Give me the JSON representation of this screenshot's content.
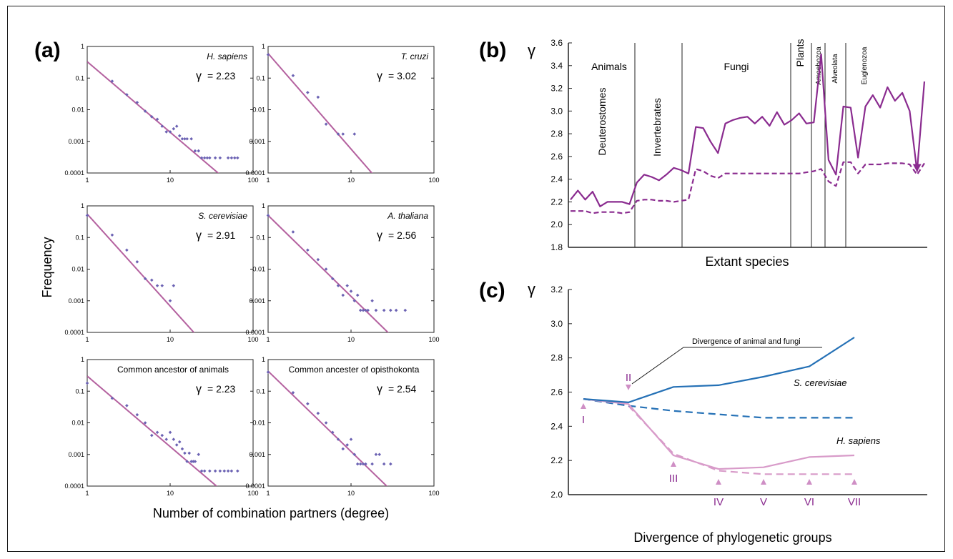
{
  "colors": {
    "purple": "#8a2b8f",
    "mauve": "#b4619f",
    "pink": "#d89bc9",
    "blue": "#2571b6",
    "dots": "#6b62b3",
    "arrow": "#cf8fc5"
  },
  "panel_a": {
    "label": "(a)",
    "ylabel": "Frequency",
    "xlabel": "Number of combination partners (degree)",
    "yticks": [
      "1",
      "0.1",
      "0.01",
      "0.001",
      "0.0001"
    ],
    "xticks": [
      "1",
      "10",
      "100"
    ],
    "gamma_symbol": "γ"
  },
  "panel_b": {
    "label": "(b)",
    "ylabel": "γ",
    "xlabel": "Extant species",
    "yticks": [
      "3.6",
      "3.4",
      "3.2",
      "3.0",
      "2.8",
      "2.6",
      "2.4",
      "2.2",
      "2.0",
      "1.8"
    ],
    "groups": [
      "Animals",
      "Deuterostomes",
      "Invertebrates",
      "Fungi",
      "Plants",
      "Amoebozoa",
      "Alveolata",
      "Euglenozoa"
    ]
  },
  "panel_c": {
    "label": "(c)",
    "ylabel": "γ",
    "xlabel": "Divergence of phylogenetic groups",
    "yticks": [
      "3.2",
      "3.0",
      "2.8",
      "2.6",
      "2.4",
      "2.2",
      "2.0"
    ],
    "annotation": "Divergence of animal and fungi",
    "series_labels": [
      "S. cerevisiae",
      "H. sapiens"
    ],
    "markers": [
      "I",
      "II",
      "III",
      "IV",
      "V",
      "VI",
      "VII"
    ]
  },
  "chart_data": [
    {
      "type": "scatter",
      "title": "H. sapiens",
      "gamma_label": "= 2.23",
      "xscale": "log",
      "yscale": "log",
      "xlim": [
        1,
        100
      ],
      "ylim": [
        0.0001,
        1
      ],
      "points": [
        [
          2,
          0.08
        ],
        [
          3,
          0.03
        ],
        [
          4,
          0.017
        ],
        [
          5,
          0.009
        ],
        [
          6,
          0.006
        ],
        [
          7,
          0.005
        ],
        [
          8,
          0.003
        ],
        [
          9,
          0.002
        ],
        [
          10,
          0.002
        ],
        [
          11,
          0.0025
        ],
        [
          12,
          0.003
        ],
        [
          13,
          0.0015
        ],
        [
          14,
          0.0012
        ],
        [
          15,
          0.0012
        ],
        [
          16,
          0.0012
        ],
        [
          18,
          0.0012
        ],
        [
          20,
          0.0005
        ],
        [
          22,
          0.0005
        ],
        [
          24,
          0.0003
        ],
        [
          26,
          0.0003
        ],
        [
          28,
          0.0003
        ],
        [
          30,
          0.0003
        ],
        [
          35,
          0.0003
        ],
        [
          40,
          0.0003
        ],
        [
          50,
          0.0003
        ],
        [
          55,
          0.0003
        ],
        [
          60,
          0.0003
        ],
        [
          65,
          0.0003
        ]
      ],
      "fit": {
        "gamma": 2.23,
        "intercept": 0.33
      }
    },
    {
      "type": "scatter",
      "title": "T. cruzi",
      "gamma_label": "= 3.02",
      "xscale": "log",
      "yscale": "log",
      "xlim": [
        1,
        100
      ],
      "ylim": [
        0.0001,
        1
      ],
      "points": [
        [
          1,
          0.55
        ],
        [
          2,
          0.12
        ],
        [
          3,
          0.035
        ],
        [
          4,
          0.025
        ],
        [
          5,
          0.0035
        ],
        [
          7,
          0.0017
        ],
        [
          8,
          0.0017
        ],
        [
          11,
          0.0017
        ]
      ],
      "fit": {
        "gamma": 3.02,
        "intercept": 0.6
      }
    },
    {
      "type": "scatter",
      "title": "S. cerevisiae",
      "gamma_label": "= 2.91",
      "xscale": "log",
      "yscale": "log",
      "xlim": [
        1,
        100
      ],
      "ylim": [
        0.0001,
        1
      ],
      "points": [
        [
          1,
          0.5
        ],
        [
          2,
          0.12
        ],
        [
          3,
          0.04
        ],
        [
          4,
          0.017
        ],
        [
          5,
          0.005
        ],
        [
          6,
          0.0045
        ],
        [
          7,
          0.003
        ],
        [
          8,
          0.003
        ],
        [
          10,
          0.001
        ],
        [
          11,
          0.003
        ]
      ],
      "fit": {
        "gamma": 2.91,
        "intercept": 0.55
      }
    },
    {
      "type": "scatter",
      "title": "A. thaliana",
      "gamma_label": "= 2.56",
      "xscale": "log",
      "yscale": "log",
      "xlim": [
        1,
        100
      ],
      "ylim": [
        0.0001,
        1
      ],
      "points": [
        [
          1,
          0.5
        ],
        [
          2,
          0.15
        ],
        [
          3,
          0.04
        ],
        [
          4,
          0.02
        ],
        [
          5,
          0.01
        ],
        [
          6,
          0.005
        ],
        [
          7,
          0.003
        ],
        [
          8,
          0.0015
        ],
        [
          9,
          0.003
        ],
        [
          10,
          0.002
        ],
        [
          11,
          0.001
        ],
        [
          12,
          0.0015
        ],
        [
          13,
          0.0005
        ],
        [
          14,
          0.0005
        ],
        [
          15,
          0.0005
        ],
        [
          16,
          0.0005
        ],
        [
          18,
          0.001
        ],
        [
          20,
          0.0005
        ],
        [
          25,
          0.0005
        ],
        [
          30,
          0.0005
        ],
        [
          35,
          0.0005
        ],
        [
          45,
          0.0005
        ]
      ],
      "fit": {
        "gamma": 2.56,
        "intercept": 0.5
      }
    },
    {
      "type": "scatter",
      "title": "Common ancestor of animals",
      "gamma_label": "= 2.23",
      "xscale": "log",
      "yscale": "log",
      "xlim": [
        1,
        100
      ],
      "ylim": [
        0.0001,
        1
      ],
      "points": [
        [
          1,
          0.18
        ],
        [
          2,
          0.06
        ],
        [
          3,
          0.035
        ],
        [
          4,
          0.018
        ],
        [
          5,
          0.01
        ],
        [
          6,
          0.004
        ],
        [
          7,
          0.005
        ],
        [
          8,
          0.004
        ],
        [
          9,
          0.003
        ],
        [
          10,
          0.005
        ],
        [
          11,
          0.003
        ],
        [
          12,
          0.002
        ],
        [
          13,
          0.0025
        ],
        [
          14,
          0.0015
        ],
        [
          15,
          0.0011
        ],
        [
          16,
          0.0006
        ],
        [
          17,
          0.0011
        ],
        [
          18,
          0.0006
        ],
        [
          19,
          0.0006
        ],
        [
          20,
          0.0006
        ],
        [
          22,
          0.001
        ],
        [
          24,
          0.0003
        ],
        [
          26,
          0.0003
        ],
        [
          30,
          0.0003
        ],
        [
          35,
          0.0003
        ],
        [
          40,
          0.0003
        ],
        [
          45,
          0.0003
        ],
        [
          50,
          0.0003
        ],
        [
          55,
          0.0003
        ],
        [
          65,
          0.0003
        ]
      ],
      "fit": {
        "gamma": 2.23,
        "intercept": 0.3
      }
    },
    {
      "type": "scatter",
      "title": "Common ancester of opisthokonta",
      "gamma_label": "= 2.54",
      "xscale": "log",
      "yscale": "log",
      "xlim": [
        1,
        100
      ],
      "ylim": [
        0.0001,
        1
      ],
      "points": [
        [
          1,
          0.4
        ],
        [
          2,
          0.09
        ],
        [
          3,
          0.04
        ],
        [
          4,
          0.02
        ],
        [
          5,
          0.01
        ],
        [
          6,
          0.005
        ],
        [
          7,
          0.003
        ],
        [
          8,
          0.0015
        ],
        [
          9,
          0.002
        ],
        [
          10,
          0.003
        ],
        [
          11,
          0.001
        ],
        [
          12,
          0.0005
        ],
        [
          13,
          0.0005
        ],
        [
          14,
          0.0005
        ],
        [
          15,
          0.0005
        ],
        [
          18,
          0.0005
        ],
        [
          20,
          0.001
        ],
        [
          22,
          0.001
        ],
        [
          25,
          0.0005
        ],
        [
          30,
          0.0005
        ]
      ],
      "fit": {
        "gamma": 2.54,
        "intercept": 0.43
      }
    },
    {
      "type": "line",
      "title": "",
      "xlabel": "Extant species",
      "ylabel": "γ",
      "ylim": [
        1.8,
        3.6
      ],
      "series": [
        {
          "style": "solid",
          "values": [
            2.22,
            2.3,
            2.22,
            2.29,
            2.16,
            2.2,
            2.2,
            2.2,
            2.18,
            2.37,
            2.44,
            2.42,
            2.39,
            2.44,
            2.5,
            2.48,
            2.45,
            2.86,
            2.85,
            2.73,
            2.63,
            2.89,
            2.92,
            2.94,
            2.95,
            2.89,
            2.95,
            2.87,
            2.99,
            2.88,
            2.92,
            2.98,
            2.89,
            2.9,
            3.5,
            2.57,
            2.44,
            3.04,
            3.03,
            2.59,
            3.04,
            3.14,
            3.03,
            3.21,
            3.09,
            3.16,
            3.0,
            2.47,
            3.26
          ]
        },
        {
          "style": "dashed",
          "values": [
            2.12,
            2.12,
            2.12,
            2.1,
            2.11,
            2.11,
            2.11,
            2.1,
            2.11,
            2.21,
            2.22,
            2.22,
            2.21,
            2.21,
            2.2,
            2.21,
            2.22,
            2.49,
            2.47,
            2.43,
            2.41,
            2.45,
            2.45,
            2.45,
            2.45,
            2.45,
            2.45,
            2.45,
            2.45,
            2.45,
            2.45,
            2.45,
            2.46,
            2.47,
            2.49,
            2.38,
            2.34,
            2.55,
            2.55,
            2.45,
            2.53,
            2.53,
            2.53,
            2.54,
            2.54,
            2.54,
            2.53,
            2.44,
            2.54
          ]
        }
      ]
    },
    {
      "type": "line",
      "title": "",
      "xlabel": "Divergence of phylogenetic groups",
      "ylabel": "γ",
      "ylim": [
        2.0,
        3.2
      ],
      "x": [
        "I",
        "II",
        "III",
        "IV",
        "V",
        "VI",
        "VII"
      ],
      "series": [
        {
          "name": "S. cerevisiae",
          "style": "solid",
          "color": "#2571b6",
          "values": [
            2.56,
            2.54,
            2.63,
            2.64,
            2.69,
            2.75,
            2.92
          ]
        },
        {
          "name": "",
          "style": "dashed",
          "color": "#2571b6",
          "values": [
            2.56,
            2.52,
            2.49,
            2.47,
            2.45,
            2.45,
            2.45
          ]
        },
        {
          "name": "H. sapiens",
          "style": "solid",
          "color": "#d89bc9",
          "values": [
            2.56,
            2.53,
            2.23,
            2.15,
            2.16,
            2.22,
            2.23
          ]
        },
        {
          "name": "",
          "style": "dashed",
          "color": "#d89bc9",
          "values": [
            2.56,
            2.52,
            2.24,
            2.14,
            2.12,
            2.12,
            2.12
          ]
        }
      ]
    }
  ]
}
